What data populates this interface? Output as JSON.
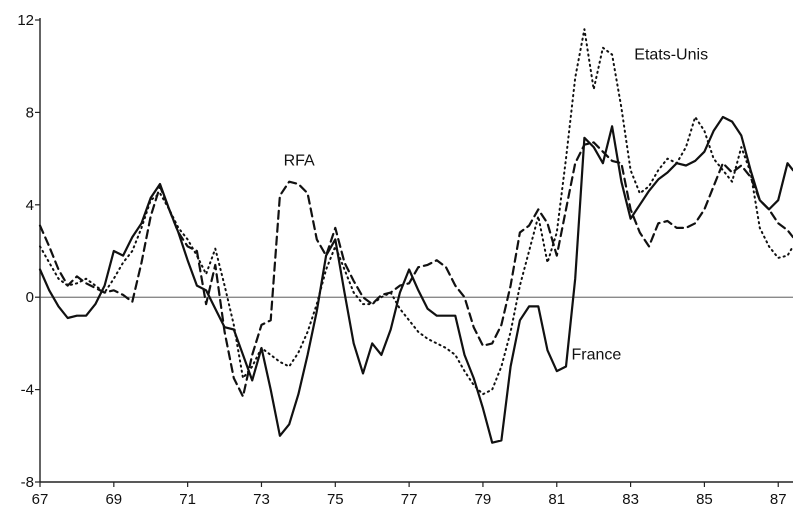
{
  "chart_data": {
    "type": "line",
    "title": "",
    "xlabel": "",
    "ylabel": "",
    "xlim": [
      67,
      87.4
    ],
    "ylim": [
      -8,
      12
    ],
    "xticks": [
      67,
      69,
      71,
      73,
      75,
      77,
      79,
      81,
      83,
      85,
      87
    ],
    "xtick_labels": [
      "67",
      "69",
      "71",
      "73",
      "75",
      "77",
      "79",
      "81",
      "83",
      "85",
      "87"
    ],
    "yticks": [
      -8,
      -4,
      0,
      4,
      8,
      12
    ],
    "ytick_labels": [
      "-8",
      "-4",
      "0",
      "4",
      "8",
      "12"
    ],
    "zero_line": true,
    "grid": false,
    "legend": "inline labels",
    "series": [
      {
        "name": "France",
        "style": "solid",
        "color": "#111111",
        "x": [
          67,
          67.25,
          67.5,
          67.75,
          68,
          68.25,
          68.5,
          68.75,
          69,
          69.25,
          69.5,
          69.75,
          70,
          70.25,
          70.5,
          70.75,
          71,
          71.25,
          71.5,
          71.75,
          72,
          72.25,
          72.5,
          72.75,
          73,
          73.25,
          73.5,
          73.75,
          74,
          74.25,
          74.5,
          74.75,
          75,
          75.25,
          75.5,
          75.75,
          76,
          76.25,
          76.5,
          76.75,
          77,
          77.25,
          77.5,
          77.75,
          78,
          78.25,
          78.5,
          78.75,
          79,
          79.25,
          79.5,
          79.75,
          80,
          80.25,
          80.5,
          80.75,
          81,
          81.25,
          81.5,
          81.75,
          82,
          82.25,
          82.5,
          82.75,
          83,
          83.25,
          83.5,
          83.75,
          84,
          84.25,
          84.5,
          84.75,
          85,
          85.25,
          85.5,
          85.75,
          86,
          86.25,
          86.5,
          86.75,
          87,
          87.25,
          87.4
        ],
        "y": [
          1.2,
          0.3,
          -0.4,
          -0.9,
          -0.8,
          -0.8,
          -0.3,
          0.5,
          2,
          1.8,
          2.6,
          3.2,
          4.3,
          4.9,
          3.8,
          2.8,
          1.6,
          0.5,
          0.3,
          -0.5,
          -1.3,
          -1.4,
          -2.5,
          -3.6,
          -2.2,
          -4,
          -6,
          -5.5,
          -4.2,
          -2.5,
          -0.6,
          1.8,
          2.5,
          0.2,
          -2,
          -3.3,
          -2,
          -2.5,
          -1.4,
          0.2,
          1.2,
          0.3,
          -0.5,
          -0.8,
          -0.8,
          -0.8,
          -2.5,
          -3.5,
          -4.8,
          -6.3,
          -6.2,
          -3,
          -1,
          -0.4,
          -0.4,
          -2.3,
          -3.2,
          -3.0,
          0.8,
          6.9,
          6.5,
          5.8,
          7.4,
          5.0,
          3.4,
          4,
          4.6,
          5.1,
          5.4,
          5.8,
          5.7,
          5.9,
          6.3,
          7.2,
          7.8,
          7.6,
          7.0,
          5.5,
          4.2,
          3.8,
          4.2,
          5.8,
          5.5
        ]
      },
      {
        "name": "RFA",
        "style": "dashed",
        "color": "#111111",
        "x": [
          67,
          67.25,
          67.5,
          67.75,
          68,
          68.25,
          68.5,
          68.75,
          69,
          69.25,
          69.5,
          69.75,
          70,
          70.25,
          70.5,
          70.75,
          71,
          71.25,
          71.5,
          71.75,
          72,
          72.25,
          72.5,
          72.75,
          73,
          73.25,
          73.5,
          73.75,
          74,
          74.25,
          74.5,
          74.75,
          75,
          75.25,
          75.5,
          75.75,
          76,
          76.25,
          76.5,
          76.75,
          77,
          77.25,
          77.5,
          77.75,
          78,
          78.25,
          78.5,
          78.75,
          79,
          79.25,
          79.5,
          79.75,
          80,
          80.25,
          80.5,
          80.75,
          81,
          81.25,
          81.5,
          81.75,
          82,
          82.25,
          82.5,
          82.75,
          83,
          83.25,
          83.5,
          83.75,
          84,
          84.25,
          84.5,
          84.75,
          85,
          85.25,
          85.5,
          85.75,
          86,
          86.25,
          86.5,
          86.75,
          87,
          87.25,
          87.4
        ],
        "y": [
          3.1,
          2.2,
          1.2,
          0.5,
          0.9,
          0.6,
          0.4,
          0.2,
          0.3,
          0.1,
          -0.2,
          1.5,
          3.5,
          4.8,
          3.8,
          2.8,
          2.2,
          2.0,
          -0.3,
          1.4,
          -1.5,
          -3.5,
          -4.3,
          -2.5,
          -1.2,
          -1.0,
          4.4,
          5.0,
          4.9,
          4.5,
          2.5,
          1.8,
          3.0,
          1.5,
          0.7,
          0.0,
          -0.3,
          0.1,
          0.2,
          0.5,
          0.6,
          1.3,
          1.4,
          1.6,
          1.3,
          0.5,
          0.0,
          -1.3,
          -2.1,
          -2.0,
          -1.2,
          0.5,
          2.8,
          3.1,
          3.8,
          3.2,
          1.8,
          3.8,
          5.8,
          6.6,
          6.7,
          6.3,
          5.9,
          5.8,
          3.8,
          2.8,
          2.2,
          3.2,
          3.3,
          3.0,
          3.0,
          3.2,
          3.8,
          4.8,
          5.8,
          5.4,
          5.7,
          5.2,
          4.2,
          3.8,
          3.2,
          2.9,
          2.6
        ]
      },
      {
        "name": "Etats-Unis",
        "style": "dotted",
        "color": "#111111",
        "x": [
          67,
          67.25,
          67.5,
          67.75,
          68,
          68.25,
          68.5,
          68.75,
          69,
          69.25,
          69.5,
          69.75,
          70,
          70.25,
          70.5,
          70.75,
          71,
          71.25,
          71.5,
          71.75,
          72,
          72.25,
          72.5,
          72.75,
          73,
          73.25,
          73.5,
          73.75,
          74,
          74.25,
          74.5,
          74.75,
          75,
          75.25,
          75.5,
          75.75,
          76,
          76.25,
          76.5,
          76.75,
          77,
          77.25,
          77.5,
          77.75,
          78,
          78.25,
          78.5,
          78.75,
          79,
          79.25,
          79.5,
          79.75,
          80,
          80.25,
          80.5,
          80.75,
          81,
          81.25,
          81.5,
          81.75,
          82,
          82.25,
          82.5,
          82.75,
          83,
          83.25,
          83.5,
          83.75,
          84,
          84.25,
          84.5,
          84.75,
          85,
          85.25,
          85.5,
          85.75,
          86,
          86.25,
          86.5,
          86.75,
          87,
          87.25,
          87.4
        ],
        "y": [
          2.2,
          1.5,
          0.8,
          0.5,
          0.6,
          0.8,
          0.5,
          0.2,
          0.8,
          1.5,
          2.0,
          3.0,
          4.2,
          4.5,
          3.8,
          3.0,
          2.5,
          1.8,
          1.0,
          2.1,
          0.5,
          -1.2,
          -3.5,
          -3.0,
          -2.2,
          -2.5,
          -2.8,
          -3.0,
          -2.4,
          -1.5,
          -0.3,
          1.2,
          2.2,
          1.2,
          0.2,
          -0.3,
          -0.3,
          0.0,
          0.2,
          -0.5,
          -1.0,
          -1.5,
          -1.8,
          -2.0,
          -2.2,
          -2.5,
          -3.2,
          -3.8,
          -4.2,
          -4.0,
          -3.0,
          -1.5,
          0.5,
          2.0,
          3.5,
          1.5,
          2.8,
          6.0,
          9.5,
          11.6,
          9.0,
          10.8,
          10.5,
          8.2,
          5.5,
          4.5,
          4.8,
          5.5,
          6.0,
          5.8,
          6.5,
          7.8,
          7.2,
          6.0,
          5.5,
          5.0,
          6.5,
          5.4,
          3.0,
          2.2,
          1.7,
          1.8,
          2.2
        ]
      }
    ],
    "annotations": [
      {
        "text": "RFA",
        "x": 73.6,
        "y": 5.7
      },
      {
        "text": "Etats-Unis",
        "x": 83.1,
        "y": 10.3
      },
      {
        "text": "France",
        "x": 81.4,
        "y": -2.7
      }
    ]
  }
}
